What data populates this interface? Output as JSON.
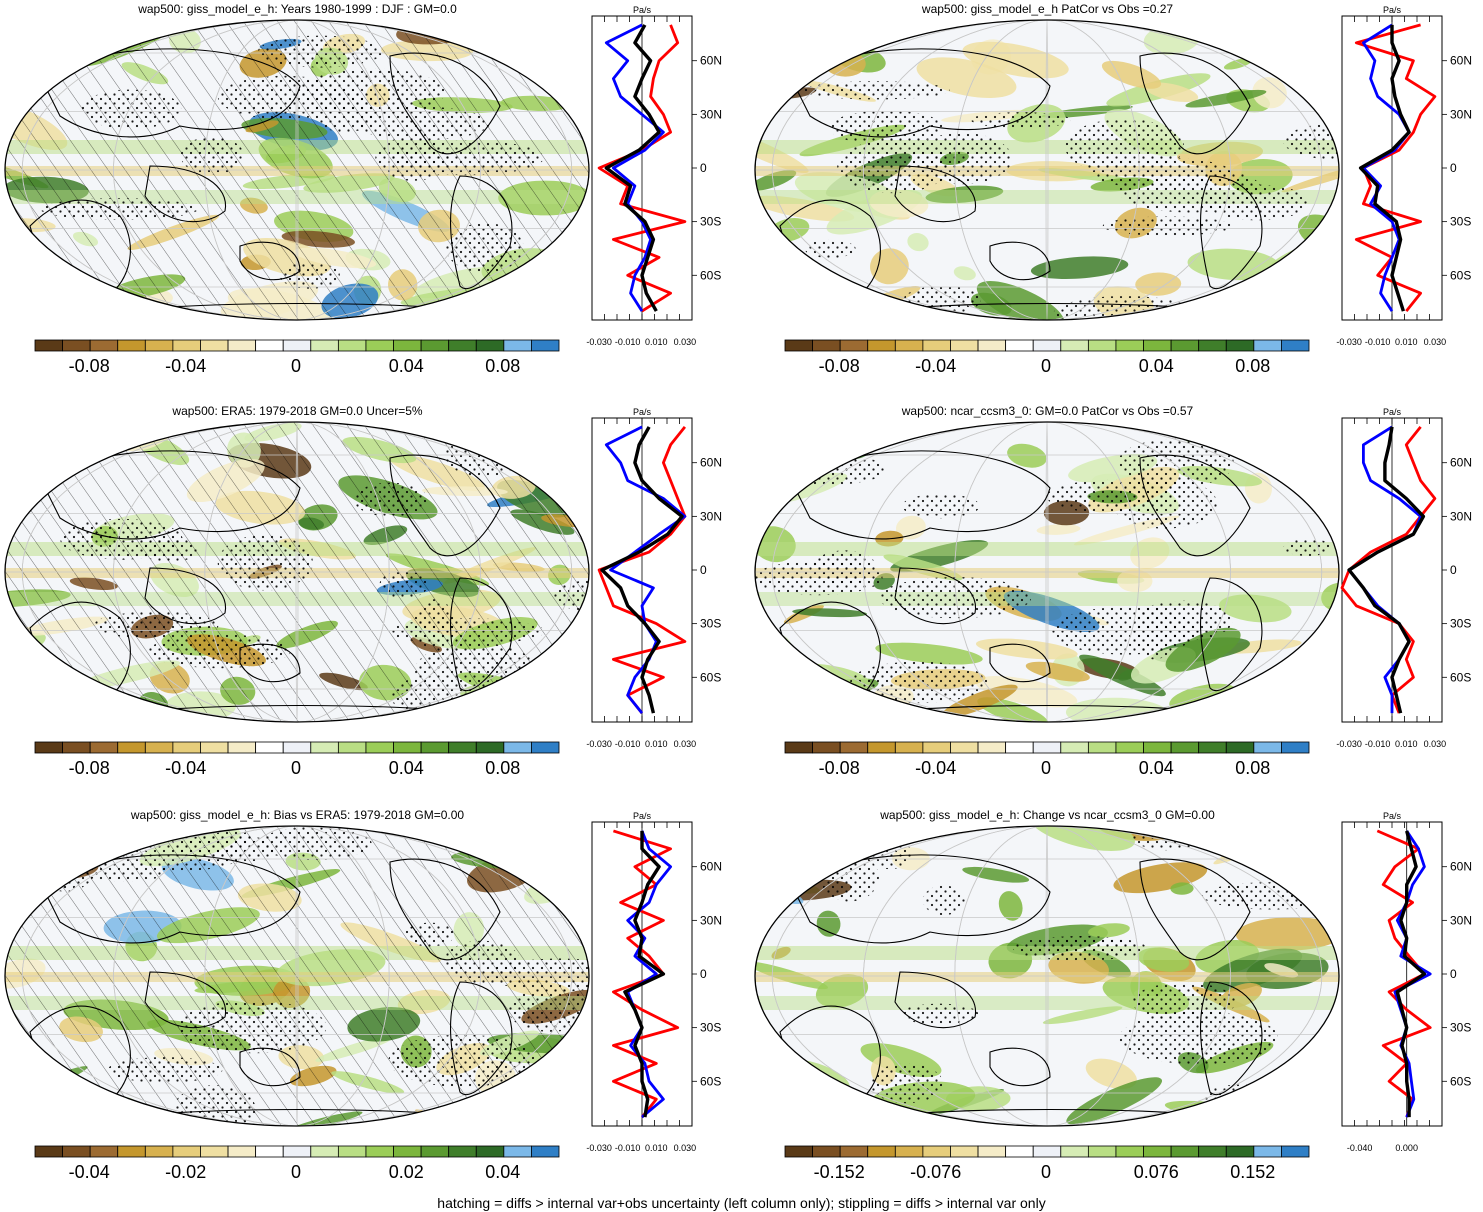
{
  "footer": "hatching = diffs > internal var+obs uncertainty (left column only); stippling = diffs > internal var only",
  "colors": [
    "#5a3a17",
    "#7a4f22",
    "#9c6b32",
    "#c4972d",
    "#d7b14f",
    "#e6cd7b",
    "#efdfa2",
    "#f5ecc8",
    "#ffffff",
    "#eef1f7",
    "#d6ecb5",
    "#b9de84",
    "#9bcd58",
    "#7cb63d",
    "#5b9a31",
    "#3f7e2a",
    "#2d6a26",
    "#7bb8e8",
    "#2f7fc6"
  ],
  "profile_colors": {
    "model": "#ff0000",
    "obs": "#0000ff",
    "multi": "#000000"
  },
  "chart_data": [
    {
      "id": "p1",
      "type": "heatmap",
      "title": "wap500: giss_model_e_h: Years 1980-1999 : DJF : GM=0.0",
      "colorbar_ticks": [
        "-0.08",
        "-0.04",
        "0",
        "0.04",
        "0.08"
      ],
      "colorbar_range": [
        -0.1,
        0.1
      ],
      "hatching": true,
      "stippling": true,
      "profile": {
        "unit": "Pa/s",
        "xticks": [
          "-0.030",
          "-0.010",
          "0.010",
          "0.030"
        ],
        "xlim": [
          -0.035,
          0.035
        ],
        "ylabels": [
          "60N",
          "30N",
          "0",
          "30S",
          "60S"
        ],
        "lat": [
          80,
          70,
          60,
          50,
          40,
          30,
          20,
          10,
          0,
          -10,
          -20,
          -30,
          -40,
          -50,
          -60,
          -70,
          -80
        ],
        "red": [
          0.02,
          0.025,
          0.012,
          0.008,
          0.006,
          0.015,
          0.02,
          0.0,
          -0.03,
          -0.01,
          -0.015,
          0.03,
          -0.02,
          0.012,
          -0.01,
          0.02,
          0.0
        ],
        "blue": [
          0.0,
          -0.025,
          -0.01,
          -0.02,
          -0.015,
          0.0,
          0.015,
          0.002,
          -0.02,
          -0.005,
          -0.01,
          0.0,
          0.006,
          0.002,
          -0.005,
          -0.008,
          0.0
        ],
        "black": [
          0.002,
          -0.005,
          0.006,
          0.0,
          -0.005,
          0.005,
          0.012,
          -0.002,
          -0.025,
          -0.008,
          -0.012,
          0.002,
          0.008,
          0.004,
          0.0,
          0.003,
          0.01
        ]
      }
    },
    {
      "id": "p2",
      "type": "heatmap",
      "title": "wap500: giss_model_e_h PatCor vs Obs =0.27",
      "colorbar_ticks": [
        "-0.08",
        "-0.04",
        "0",
        "0.04",
        "0.08"
      ],
      "colorbar_range": [
        -0.1,
        0.1
      ],
      "hatching": false,
      "stippling": true,
      "profile": {
        "unit": "Pa/s",
        "xticks": [
          "-0.030",
          "-0.010",
          "0.010",
          "0.030"
        ],
        "xlim": [
          -0.035,
          0.035
        ],
        "ylabels": [
          "60N",
          "30N",
          "0",
          "30S",
          "60S"
        ],
        "lat": [
          80,
          70,
          60,
          50,
          40,
          30,
          20,
          10,
          0,
          -10,
          -20,
          -30,
          -40,
          -50,
          -60,
          -70,
          -80
        ],
        "red": [
          0.02,
          -0.025,
          0.015,
          0.01,
          0.03,
          0.02,
          0.015,
          0.005,
          -0.02,
          -0.015,
          -0.02,
          0.02,
          -0.025,
          0.0,
          -0.01,
          0.02,
          0.01
        ],
        "blue": [
          0.0,
          -0.02,
          -0.012,
          -0.015,
          -0.01,
          0.005,
          0.012,
          0.002,
          -0.02,
          -0.008,
          -0.015,
          0.0,
          0.005,
          0.0,
          -0.005,
          -0.008,
          0.0
        ],
        "black": [
          0.0,
          0.0,
          0.005,
          0.0,
          0.002,
          0.006,
          0.012,
          0.0,
          -0.022,
          -0.01,
          -0.012,
          0.003,
          0.006,
          0.003,
          0.0,
          0.004,
          0.008
        ]
      }
    },
    {
      "id": "p3",
      "type": "heatmap",
      "title": "wap500: ERA5: 1979-2018 GM=0.0 Uncer=5%",
      "colorbar_ticks": [
        "-0.08",
        "-0.04",
        "0",
        "0.04",
        "0.08"
      ],
      "colorbar_range": [
        -0.1,
        0.1
      ],
      "hatching": true,
      "stippling": true,
      "profile": {
        "unit": "Pa/s",
        "xticks": [
          "-0.030",
          "-0.010",
          "0.010",
          "0.030"
        ],
        "xlim": [
          -0.035,
          0.035
        ],
        "ylabels": [
          "60N",
          "30N",
          "0",
          "30S",
          "60S"
        ],
        "lat": [
          80,
          70,
          60,
          50,
          40,
          30,
          20,
          10,
          0,
          -10,
          -20,
          -30,
          -40,
          -50,
          -60,
          -70,
          -80
        ],
        "red": [
          0.03,
          0.02,
          0.015,
          0.02,
          0.025,
          0.03,
          0.02,
          0.005,
          -0.03,
          -0.025,
          -0.02,
          0.01,
          0.03,
          -0.02,
          0.015,
          -0.01,
          0.0
        ],
        "blue": [
          0.0,
          -0.025,
          -0.015,
          -0.01,
          0.015,
          0.03,
          0.012,
          -0.005,
          -0.022,
          0.008,
          0.0,
          0.002,
          0.01,
          0.005,
          -0.005,
          -0.01,
          0.0
        ],
        "black": [
          0.005,
          -0.002,
          -0.005,
          0.0,
          0.012,
          0.028,
          0.018,
          -0.002,
          -0.028,
          -0.015,
          -0.01,
          0.002,
          0.012,
          0.004,
          0.0,
          0.005,
          0.008
        ]
      }
    },
    {
      "id": "p4",
      "type": "heatmap",
      "title": "wap500: ncar_ccsm3_0: GM=0.0 PatCor vs Obs =0.57",
      "colorbar_ticks": [
        "-0.08",
        "-0.04",
        "0",
        "0.04",
        "0.08"
      ],
      "colorbar_range": [
        -0.1,
        0.1
      ],
      "hatching": false,
      "stippling": true,
      "profile": {
        "unit": "Pa/s",
        "xticks": [
          "-0.030",
          "-0.010",
          "0.010",
          "0.030"
        ],
        "xlim": [
          -0.035,
          0.035
        ],
        "ylabels": [
          "60N",
          "30N",
          "0",
          "30S",
          "60S"
        ],
        "lat": [
          80,
          70,
          60,
          50,
          40,
          30,
          20,
          10,
          0,
          -10,
          -20,
          -30,
          -40,
          -50,
          -60,
          -70,
          -80
        ],
        "red": [
          0.02,
          0.01,
          0.015,
          0.02,
          0.03,
          0.02,
          0.01,
          -0.015,
          -0.03,
          -0.035,
          -0.025,
          0.005,
          0.015,
          0.01,
          0.015,
          0.0,
          0.005
        ],
        "blue": [
          0.0,
          -0.02,
          -0.02,
          -0.015,
          0.005,
          0.02,
          0.015,
          -0.01,
          -0.03,
          -0.02,
          -0.01,
          0.005,
          0.012,
          0.005,
          -0.005,
          0.0,
          0.0
        ],
        "black": [
          0.0,
          -0.002,
          -0.005,
          -0.005,
          0.01,
          0.022,
          0.015,
          -0.01,
          -0.03,
          -0.02,
          -0.012,
          0.005,
          0.012,
          0.005,
          0.0,
          0.003,
          0.006
        ]
      }
    },
    {
      "id": "p5",
      "type": "heatmap",
      "title": "wap500: giss_model_e_h: Bias vs ERA5: 1979-2018 GM=0.00",
      "colorbar_ticks": [
        "-0.04",
        "-0.02",
        "0",
        "0.02",
        "0.04"
      ],
      "colorbar_range": [
        -0.05,
        0.05
      ],
      "hatching": true,
      "stippling": true,
      "profile": {
        "unit": "Pa/s",
        "xticks": [
          "-0.030",
          "-0.010",
          "0.010",
          "0.030"
        ],
        "xlim": [
          -0.035,
          0.035
        ],
        "ylabels": [
          "60N",
          "30N",
          "0",
          "30S",
          "60S"
        ],
        "lat": [
          80,
          70,
          60,
          50,
          40,
          30,
          20,
          10,
          0,
          -10,
          -20,
          -30,
          -40,
          -50,
          -60,
          -70,
          -80
        ],
        "red": [
          -0.02,
          0.02,
          -0.005,
          0.01,
          -0.015,
          0.015,
          -0.01,
          0.005,
          0.015,
          -0.02,
          0.0,
          0.025,
          -0.02,
          0.01,
          -0.02,
          0.01,
          0.0
        ],
        "blue": [
          0.0,
          0.005,
          0.02,
          0.01,
          0.005,
          -0.01,
          0.002,
          -0.005,
          0.01,
          -0.01,
          -0.005,
          0.0,
          -0.008,
          0.002,
          0.005,
          0.015,
          0.0
        ],
        "black": [
          0.0,
          0.0,
          0.012,
          0.004,
          0.0,
          -0.005,
          0.0,
          -0.002,
          0.015,
          -0.012,
          -0.005,
          0.0,
          -0.005,
          0.0,
          0.0,
          0.004,
          0.002
        ]
      }
    },
    {
      "id": "p6",
      "type": "heatmap",
      "title": "wap500: giss_model_e_h: Change vs ncar_ccsm3_0 GM=0.00",
      "colorbar_ticks": [
        "-0.152",
        "-0.076",
        "0",
        "0.076",
        "0.152"
      ],
      "colorbar_range": [
        -0.19,
        0.19
      ],
      "hatching": false,
      "stippling": true,
      "profile": {
        "unit": "Pa/s",
        "xticks": [
          "-0.040",
          "0.000"
        ],
        "xlim": [
          -0.055,
          0.03
        ],
        "ylabels": [
          "60N",
          "30N",
          "0",
          "30S",
          "60S"
        ],
        "lat": [
          80,
          70,
          60,
          50,
          40,
          30,
          20,
          10,
          0,
          -10,
          -20,
          -30,
          -40,
          -50,
          -60,
          -70,
          -80
        ],
        "red": [
          -0.025,
          0.01,
          -0.01,
          -0.02,
          0.005,
          -0.015,
          -0.01,
          0.002,
          0.015,
          -0.015,
          0.0,
          0.02,
          -0.02,
          0.0,
          -0.015,
          0.005,
          0.0
        ],
        "blue": [
          0.0,
          0.01,
          0.015,
          0.005,
          0.0,
          -0.008,
          0.0,
          -0.005,
          0.02,
          -0.01,
          -0.005,
          0.0,
          -0.005,
          0.002,
          0.004,
          0.006,
          0.0
        ],
        "black": [
          0.0,
          0.004,
          0.008,
          0.0,
          0.0,
          -0.005,
          0.0,
          -0.002,
          0.015,
          -0.008,
          -0.004,
          0.0,
          -0.004,
          0.0,
          0.0,
          0.002,
          0.002
        ]
      }
    }
  ]
}
